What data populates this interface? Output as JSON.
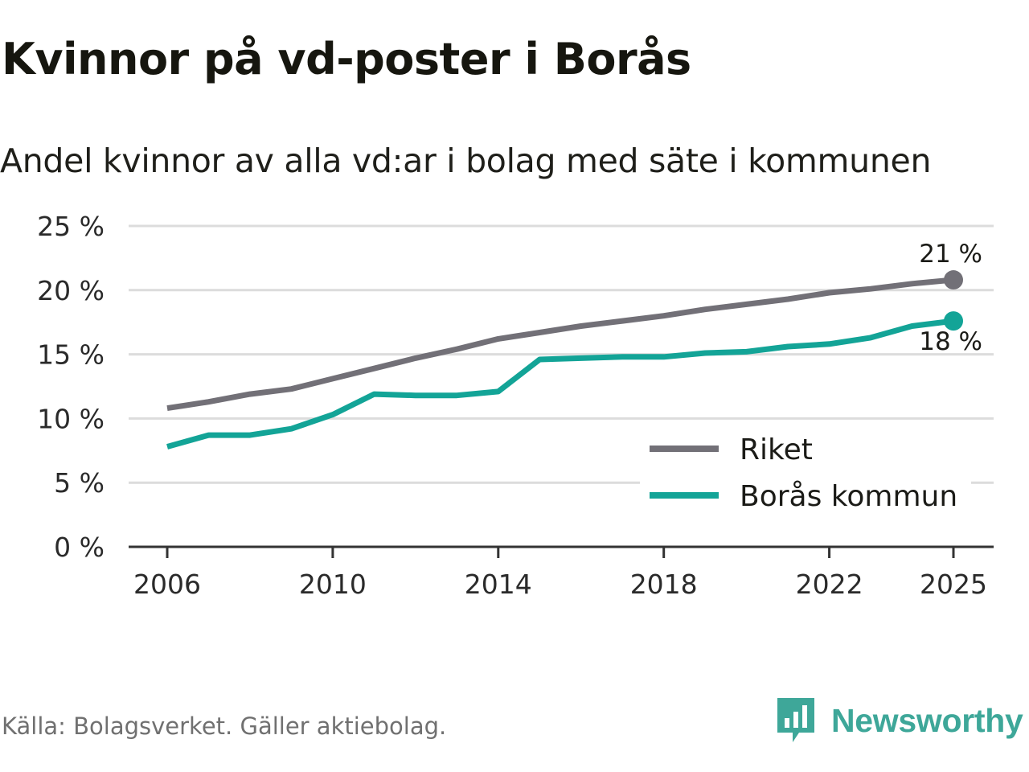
{
  "title": "Kvinnor på vd-poster i Borås",
  "subtitle": "Andel kvinnor av alla vd:ar i bolag med säte i kommunen",
  "source": "Källa: Bolagsverket. Gäller aktiebolag.",
  "brand": {
    "name": "Newsworthy",
    "icon": "newsworthy-logo-icon",
    "color": "#3ea799"
  },
  "colors": {
    "riket": "#727077",
    "boras": "#13a497",
    "grid": "#dcdcdc",
    "axis": "#333333"
  },
  "chart_data": {
    "type": "line",
    "title": "Kvinnor på vd-poster i Borås",
    "subtitle": "Andel kvinnor av alla vd:ar i bolag med säte i kommunen",
    "xlabel": "",
    "ylabel": "",
    "grid": true,
    "legend_position": "bottom-right",
    "ylim": [
      0,
      25
    ],
    "xlim": [
      2006,
      2025
    ],
    "y_ticks": [
      0,
      5,
      10,
      15,
      20,
      25
    ],
    "y_tick_labels": [
      "0 %",
      "5 %",
      "10 %",
      "15 %",
      "20 %",
      "25 %"
    ],
    "x_ticks": [
      2006,
      2010,
      2014,
      2018,
      2022,
      2025
    ],
    "x_tick_labels": [
      "2006",
      "2010",
      "2014",
      "2018",
      "2022",
      "2025"
    ],
    "x": [
      2006,
      2007,
      2008,
      2009,
      2010,
      2011,
      2012,
      2013,
      2014,
      2015,
      2016,
      2017,
      2018,
      2019,
      2020,
      2021,
      2022,
      2023,
      2024,
      2025
    ],
    "series": [
      {
        "name": "Riket",
        "color": "#727077",
        "end_label": "21 %",
        "values": [
          10.8,
          11.3,
          11.9,
          12.3,
          13.1,
          13.9,
          14.7,
          15.4,
          16.2,
          16.7,
          17.2,
          17.6,
          18.0,
          18.5,
          18.9,
          19.3,
          19.8,
          20.1,
          20.5,
          20.8
        ]
      },
      {
        "name": "Borås kommun",
        "color": "#13a497",
        "end_label": "18 %",
        "values": [
          7.8,
          8.7,
          8.7,
          9.2,
          10.3,
          11.9,
          11.8,
          11.8,
          12.1,
          14.6,
          14.7,
          14.8,
          14.8,
          15.1,
          15.2,
          15.6,
          15.8,
          16.3,
          17.2,
          17.6
        ]
      }
    ]
  }
}
